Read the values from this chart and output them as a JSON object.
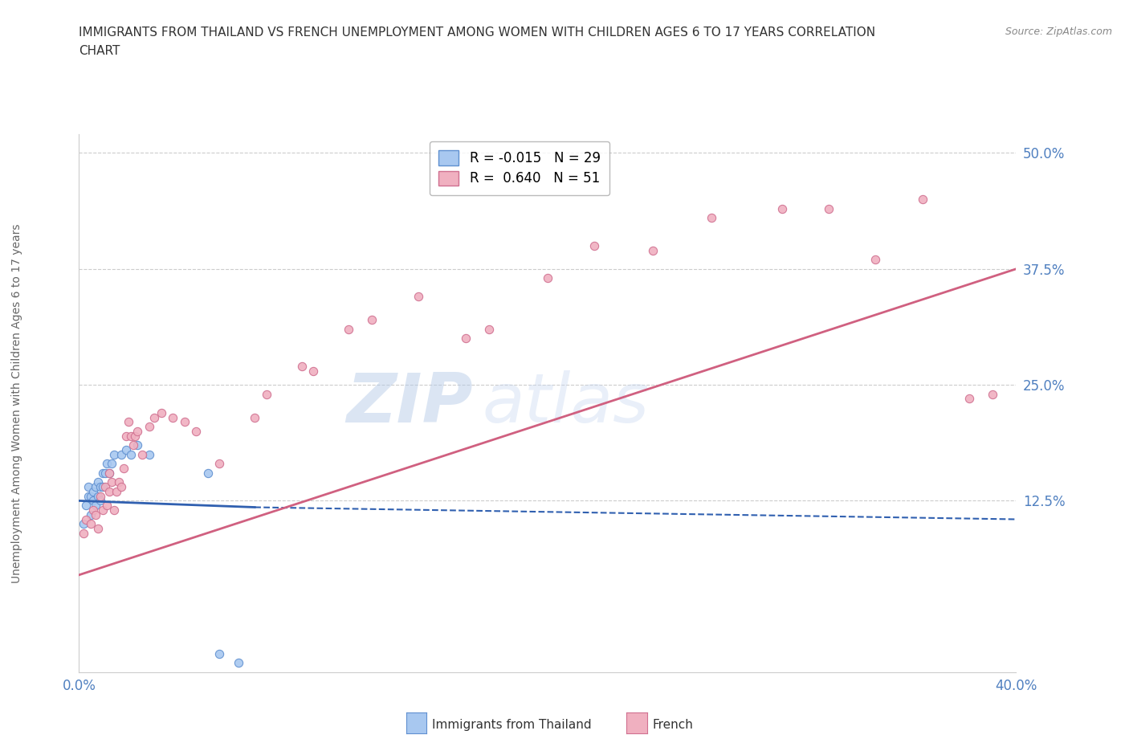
{
  "title_line1": "IMMIGRANTS FROM THAILAND VS FRENCH UNEMPLOYMENT AMONG WOMEN WITH CHILDREN AGES 6 TO 17 YEARS CORRELATION",
  "title_line2": "CHART",
  "source_text": "Source: ZipAtlas.com",
  "ylabel": "Unemployment Among Women with Children Ages 6 to 17 years",
  "xlim": [
    0.0,
    0.4
  ],
  "ylim": [
    -0.06,
    0.52
  ],
  "yticks": [
    0.125,
    0.25,
    0.375,
    0.5
  ],
  "ytick_labels": [
    "12.5%",
    "25.0%",
    "37.5%",
    "50.0%"
  ],
  "xticks": [
    0.0,
    0.05,
    0.1,
    0.15,
    0.2,
    0.25,
    0.3,
    0.35,
    0.4
  ],
  "xtick_labels": [
    "0.0%",
    "",
    "",
    "",
    "",
    "",
    "",
    "",
    "40.0%"
  ],
  "legend_entry_blue": "R = -0.015   N = 29",
  "legend_entry_pink": "R =  0.640   N = 51",
  "watermark_zip": "ZIP",
  "watermark_atlas": "atlas",
  "blue_scatter_x": [
    0.002,
    0.003,
    0.004,
    0.004,
    0.005,
    0.005,
    0.006,
    0.006,
    0.007,
    0.007,
    0.008,
    0.008,
    0.009,
    0.009,
    0.01,
    0.01,
    0.011,
    0.012,
    0.013,
    0.014,
    0.015,
    0.018,
    0.02,
    0.022,
    0.025,
    0.03,
    0.055,
    0.06,
    0.068
  ],
  "blue_scatter_y": [
    0.1,
    0.12,
    0.13,
    0.14,
    0.11,
    0.13,
    0.125,
    0.135,
    0.14,
    0.12,
    0.145,
    0.13,
    0.14,
    0.125,
    0.155,
    0.14,
    0.155,
    0.165,
    0.155,
    0.165,
    0.175,
    0.175,
    0.18,
    0.175,
    0.185,
    0.175,
    0.155,
    -0.04,
    -0.05
  ],
  "pink_scatter_x": [
    0.002,
    0.003,
    0.005,
    0.006,
    0.007,
    0.008,
    0.009,
    0.01,
    0.011,
    0.012,
    0.013,
    0.013,
    0.014,
    0.015,
    0.016,
    0.017,
    0.018,
    0.019,
    0.02,
    0.021,
    0.022,
    0.023,
    0.024,
    0.025,
    0.027,
    0.03,
    0.032,
    0.035,
    0.04,
    0.045,
    0.05,
    0.06,
    0.075,
    0.08,
    0.095,
    0.1,
    0.115,
    0.125,
    0.145,
    0.165,
    0.175,
    0.2,
    0.22,
    0.245,
    0.27,
    0.3,
    0.32,
    0.34,
    0.36,
    0.38,
    0.39
  ],
  "pink_scatter_y": [
    0.09,
    0.105,
    0.1,
    0.115,
    0.11,
    0.095,
    0.13,
    0.115,
    0.14,
    0.12,
    0.135,
    0.155,
    0.145,
    0.115,
    0.135,
    0.145,
    0.14,
    0.16,
    0.195,
    0.21,
    0.195,
    0.185,
    0.195,
    0.2,
    0.175,
    0.205,
    0.215,
    0.22,
    0.215,
    0.21,
    0.2,
    0.165,
    0.215,
    0.24,
    0.27,
    0.265,
    0.31,
    0.32,
    0.345,
    0.3,
    0.31,
    0.365,
    0.4,
    0.395,
    0.43,
    0.44,
    0.44,
    0.385,
    0.45,
    0.235,
    0.24
  ],
  "blue_solid_line_x": [
    0.0,
    0.075
  ],
  "blue_solid_line_y": [
    0.125,
    0.118
  ],
  "blue_dashed_line_x": [
    0.075,
    0.4
  ],
  "blue_dashed_line_y": [
    0.118,
    0.105
  ],
  "pink_line_x": [
    0.0,
    0.4
  ],
  "pink_line_y": [
    0.045,
    0.375
  ],
  "scatter_size": 55,
  "blue_color": "#a8c8f0",
  "blue_edge_color": "#6090d0",
  "pink_color": "#f0b0c0",
  "pink_edge_color": "#d07090",
  "blue_line_color": "#3060b0",
  "pink_line_color": "#d06080",
  "grid_color": "#cccccc",
  "tick_color": "#5080c0",
  "title_color": "#333333",
  "source_color": "#888888",
  "background_color": "#ffffff",
  "axis_label_color": "#666666"
}
